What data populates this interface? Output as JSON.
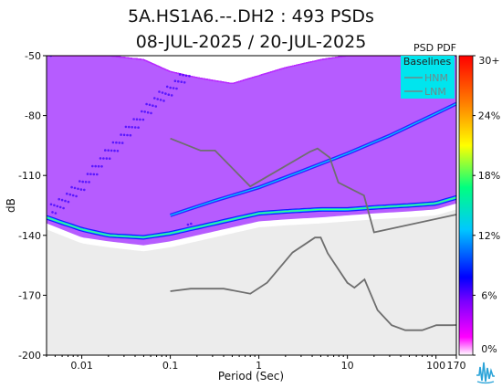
{
  "figure": {
    "title_line1": "5A.HS1A6.--.DH2 : 493 PSDs",
    "title_line2": "08-JUL-2025 / 20-JUL-2025"
  },
  "colorbar": {
    "title": "PSD PDF",
    "labels": [
      "30+",
      "24%",
      "18%",
      "12%",
      "6%",
      "0%"
    ],
    "colors": [
      "#ffffff",
      "#ff00ff",
      "#7a00ff",
      "#0000ff",
      "#00c8ff",
      "#00ff80",
      "#ffff00",
      "#ff8000",
      "#ff0000"
    ]
  },
  "legend": {
    "title": "Baselines",
    "entries": [
      {
        "label": "HNM",
        "color": "#6d8a8a"
      },
      {
        "label": "LNM",
        "color": "#6d8a8a"
      }
    ],
    "background": "#00e5ee"
  },
  "chart_data": {
    "type": "heatmap",
    "title": "5A.HS1A6.--.DH2 : 493 PSDs",
    "subtitle": "08-JUL-2025 / 20-JUL-2025",
    "xlabel": "Period (Sec)",
    "ylabel": "dB",
    "x_scale": "log",
    "xlim": [
      0.004,
      170
    ],
    "ylim": [
      -200,
      -50
    ],
    "x_ticks": [
      0.01,
      0.1,
      1,
      10,
      100,
      170
    ],
    "x_tick_labels": [
      "0.01",
      "0.1",
      "1",
      "10",
      "100",
      "170"
    ],
    "y_ticks": [
      -50,
      -80,
      -110,
      -140,
      -170,
      -200
    ],
    "y_tick_labels": [
      "-50",
      "-80",
      "-110",
      "-140",
      "-170",
      "-200"
    ],
    "colorbar_ticks": [
      "30+",
      "24%",
      "18%",
      "12%",
      "6%",
      "0%"
    ],
    "psd_envelope": {
      "lower": {
        "x": [
          0.004,
          0.01,
          0.02,
          0.05,
          0.1,
          0.2,
          0.5,
          1,
          2,
          5,
          10,
          20,
          50,
          100,
          170
        ],
        "y": [
          -131,
          -138,
          -140,
          -142,
          -140,
          -137,
          -133,
          -130,
          -129,
          -128,
          -127,
          -126,
          -125,
          -124,
          -121
        ]
      },
      "upper": {
        "x": [
          0.004,
          0.01,
          0.02,
          0.05,
          0.1,
          0.2,
          0.5,
          1,
          2,
          5,
          10,
          20,
          50,
          100,
          170
        ],
        "y": [
          -50,
          -50,
          -50,
          -52,
          -58,
          -61,
          -64,
          -60,
          -56,
          -52,
          -50,
          -50,
          -50,
          -50,
          -50
        ]
      },
      "mode_line": {
        "x": [
          0.004,
          0.01,
          0.02,
          0.05,
          0.1,
          0.2,
          0.5,
          1,
          2,
          5,
          10,
          20,
          50,
          100,
          170
        ],
        "y": [
          -131,
          -137,
          -140,
          -141,
          -139,
          -136,
          -132,
          -129,
          -128,
          -127,
          -127,
          -126,
          -125,
          -124,
          -121
        ]
      },
      "upper_mode_line": {
        "x": [
          0.1,
          0.3,
          1,
          3,
          10,
          30,
          100,
          170
        ],
        "y": [
          -130,
          -123,
          -116,
          -108,
          -99,
          -90,
          -79,
          -74
        ]
      }
    },
    "series": [
      {
        "name": "HNM",
        "x": [
          0.1,
          0.22,
          0.32,
          0.8,
          3.8,
          4.6,
          6.3,
          7.9,
          15.4,
          20,
          354.8
        ],
        "y": [
          -91.5,
          -97.5,
          -97.5,
          -115.5,
          -98,
          -96.5,
          -101,
          -113.5,
          -120,
          -138.5,
          -126.5
        ]
      },
      {
        "name": "LNM",
        "x": [
          0.1,
          0.17,
          0.4,
          0.8,
          1.24,
          2.4,
          4.3,
          5,
          6,
          10,
          12,
          15.6,
          21.9,
          31.6,
          45,
          70,
          101,
          154,
          328
        ],
        "y": [
          -168,
          -166.7,
          -166.7,
          -169.2,
          -163.7,
          -148.6,
          -141.1,
          -141.1,
          -149,
          -163.8,
          -166.2,
          -162.1,
          -177.5,
          -185,
          -187.5,
          -187.5,
          -185,
          -185,
          -184.4
        ]
      }
    ],
    "legend_position": "top-right",
    "grid": false
  }
}
